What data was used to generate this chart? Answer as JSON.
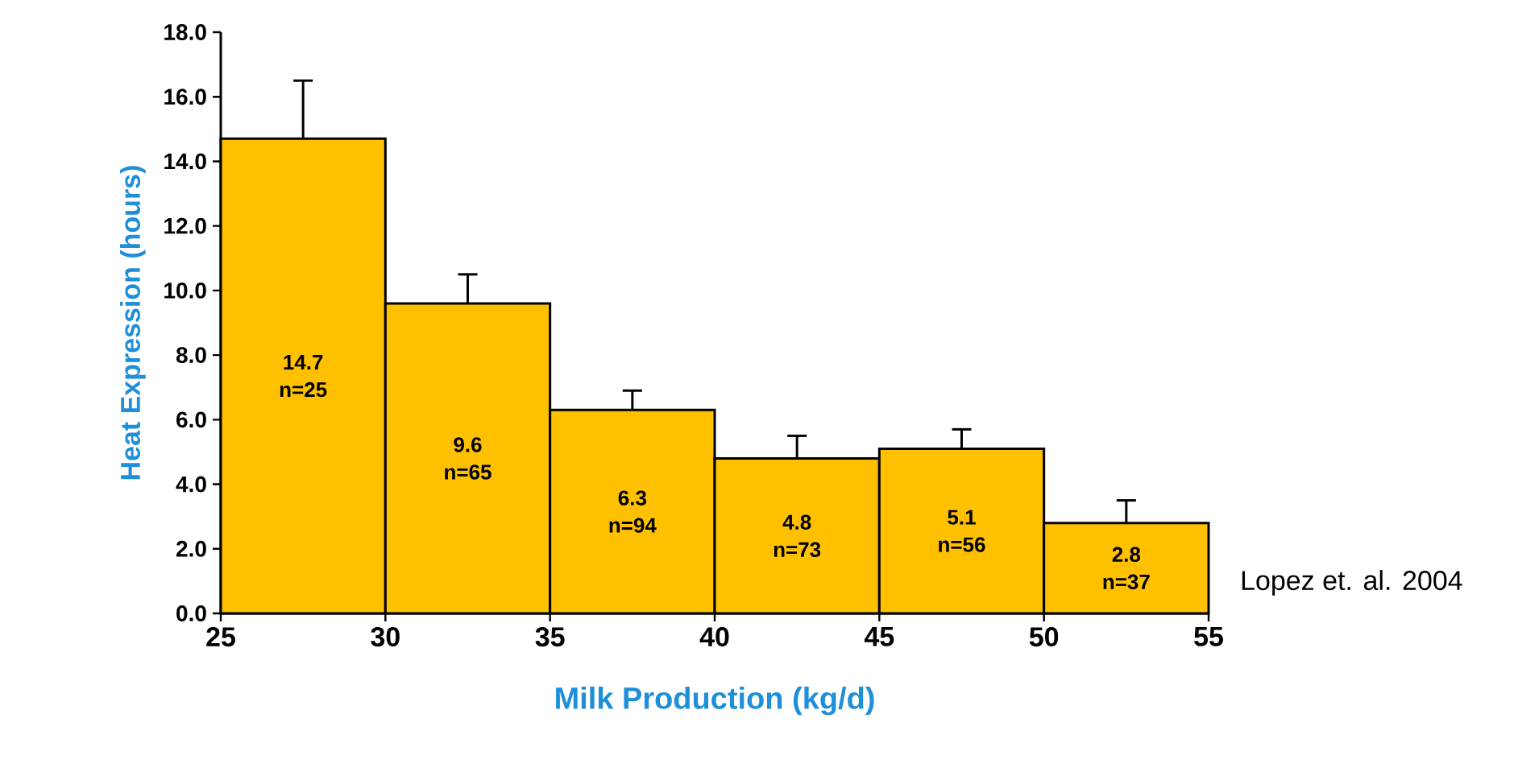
{
  "chart_data": {
    "type": "histogram",
    "xlabel": "Milk Production (kg/d)",
    "ylabel": "Heat Expression (hours)",
    "bins": [
      25,
      30,
      35,
      40,
      45,
      50,
      55
    ],
    "values": [
      14.7,
      9.6,
      6.3,
      4.8,
      5.1,
      2.8
    ],
    "errors": [
      [
        14.7,
        16.5
      ],
      [
        9.6,
        10.5
      ],
      [
        6.3,
        6.9
      ],
      [
        4.8,
        5.5
      ],
      [
        5.1,
        5.7
      ],
      [
        2.8,
        3.5
      ]
    ],
    "value_labels": [
      "14.7 n=25",
      "9.6 n=65",
      "6.3 n=94",
      "4.8 n=73",
      "5.1 n=56",
      "2.8 n=37"
    ],
    "color": "#ffc000",
    "xlim": [
      25,
      55
    ],
    "xticks": [
      25,
      30,
      35,
      40,
      45,
      50,
      55
    ],
    "ylim": [
      0,
      18
    ],
    "yticks": [
      {
        "value": 0,
        "label": "0.0"
      },
      {
        "value": 2,
        "label": "2.0"
      },
      {
        "value": 4,
        "label": "4.0"
      },
      {
        "value": 6,
        "label": "6.0"
      },
      {
        "value": 8,
        "label": "8.0"
      },
      {
        "value": 10,
        "label": "10.0"
      },
      {
        "value": 12,
        "label": "12.0"
      },
      {
        "value": 14,
        "label": "14.0"
      },
      {
        "value": 16,
        "label": "16.0"
      },
      {
        "value": 18,
        "label": "18.0"
      }
    ],
    "grid": false,
    "annotations": [
      "Lopez et. al. 2004"
    ]
  }
}
